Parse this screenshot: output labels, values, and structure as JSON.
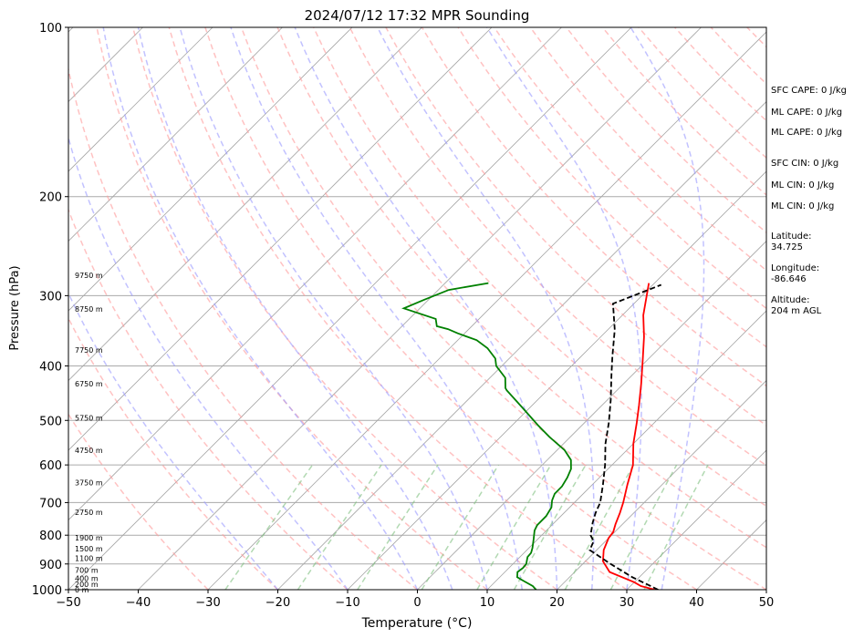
{
  "chart_data": {
    "type": "line",
    "title": "2024/07/12 17:32 MPR Sounding",
    "xlabel": "Temperature (°C)",
    "ylabel": "Pressure (hPa)",
    "xlim": [
      -50,
      50
    ],
    "ylim": [
      1000,
      100
    ],
    "y_scale": "log",
    "grid": true,
    "x_ticks": [
      "−50",
      "−40",
      "−30",
      "−20",
      "−10",
      "0",
      "10",
      "20",
      "30",
      "40",
      "50"
    ],
    "y_ticks": [
      "100",
      "200",
      "300",
      "400",
      "500",
      "600",
      "700",
      "800",
      "900",
      "1000"
    ],
    "height_labels": [
      {
        "p": 1000,
        "label": "0 m"
      },
      {
        "p": 977,
        "label": "200 m"
      },
      {
        "p": 954,
        "label": "400 m"
      },
      {
        "p": 923,
        "label": "700 m"
      },
      {
        "p": 880,
        "label": "1100 m"
      },
      {
        "p": 846,
        "label": "1500 m"
      },
      {
        "p": 808,
        "label": "1900 m"
      },
      {
        "p": 728,
        "label": "2750 m"
      },
      {
        "p": 645,
        "label": "3750 m"
      },
      {
        "p": 565,
        "label": "4750 m"
      },
      {
        "p": 495,
        "label": "5750 m"
      },
      {
        "p": 430,
        "label": "6750 m"
      },
      {
        "p": 375,
        "label": "7750 m"
      },
      {
        "p": 317,
        "label": "8750 m"
      },
      {
        "p": 276,
        "label": "9750 m"
      }
    ],
    "series": [
      {
        "role": "temperature",
        "color": "#ff0000",
        "points": [
          [
            34,
            1000
          ],
          [
            31.5,
            985
          ],
          [
            30,
            970
          ],
          [
            25,
            930
          ],
          [
            22.5,
            890
          ],
          [
            21,
            850
          ],
          [
            20,
            810
          ],
          [
            19.8,
            790
          ],
          [
            19,
            765
          ],
          [
            18,
            730
          ],
          [
            17,
            700
          ],
          [
            15,
            650
          ],
          [
            13,
            600
          ],
          [
            10,
            550
          ],
          [
            7.5,
            505
          ],
          [
            5.3,
            470
          ],
          [
            2.5,
            430
          ],
          [
            -0.7,
            390
          ],
          [
            -3.8,
            355
          ],
          [
            -7,
            325
          ],
          [
            -10.8,
            285
          ]
        ]
      },
      {
        "role": "dewpoint",
        "color": "#008000",
        "points": [
          [
            17,
            1000
          ],
          [
            16,
            985
          ],
          [
            14,
            965
          ],
          [
            12.5,
            950
          ],
          [
            11.8,
            930
          ],
          [
            12,
            915
          ],
          [
            11.9,
            900
          ],
          [
            11.1,
            875
          ],
          [
            11,
            860
          ],
          [
            10.5,
            843
          ],
          [
            9.4,
            813
          ],
          [
            8.3,
            785
          ],
          [
            7.9,
            768
          ],
          [
            7.9,
            740
          ],
          [
            7.4,
            714
          ],
          [
            6.5,
            694
          ],
          [
            5.9,
            675
          ],
          [
            5.9,
            655
          ],
          [
            5.4,
            632
          ],
          [
            4.7,
            610
          ],
          [
            3.4,
            588
          ],
          [
            1.1,
            565
          ],
          [
            -3,
            535
          ],
          [
            -6.3,
            510
          ],
          [
            -11,
            475
          ],
          [
            -15.8,
            442
          ],
          [
            -16.3,
            438
          ],
          [
            -17.8,
            420
          ],
          [
            -20.8,
            400
          ],
          [
            -22,
            388
          ],
          [
            -24.6,
            372
          ],
          [
            -27.3,
            360
          ],
          [
            -31,
            350
          ],
          [
            -33,
            344
          ],
          [
            -35,
            340
          ],
          [
            -36.2,
            330
          ],
          [
            -42.3,
            316
          ],
          [
            -40.6,
            305
          ],
          [
            -38.5,
            293
          ],
          [
            -33.8,
            285
          ]
        ]
      },
      {
        "role": "parcel",
        "color": "#000000",
        "points": [
          [
            34.5,
            1000
          ],
          [
            29,
            950
          ],
          [
            24,
            900
          ],
          [
            19,
            850
          ],
          [
            18.3,
            820
          ],
          [
            17,
            800
          ],
          [
            15.5,
            760
          ],
          [
            14.5,
            730
          ],
          [
            13.7,
            700
          ],
          [
            11.5,
            650
          ],
          [
            9,
            600
          ],
          [
            6,
            550
          ],
          [
            3.5,
            505
          ],
          [
            0.5,
            460
          ],
          [
            -3,
            415
          ],
          [
            -5.5,
            385
          ],
          [
            -9,
            345
          ],
          [
            -13,
            310
          ],
          [
            -8.8,
            287
          ]
        ]
      }
    ],
    "side_text": [
      "SFC CAPE: 0 J/kg",
      "ML CAPE: 0 J/kg",
      "ML CAPE: 0 J/kg",
      "SFC CIN: 0 J/kg",
      "ML CIN: 0 J/kg",
      "ML CIN: 0 J/kg",
      "Latitude:",
      "34.725",
      "Longitude:",
      "-86.646",
      "Altitude:",
      "204 m AGL"
    ],
    "colors": {
      "isotherm": "#a6a6a6",
      "dry_adiabat": "#ff9999",
      "moist_adiabat": "#9999ff",
      "mixing_ratio": "#7fbf7f",
      "isobar": "#aaaaaa"
    }
  }
}
